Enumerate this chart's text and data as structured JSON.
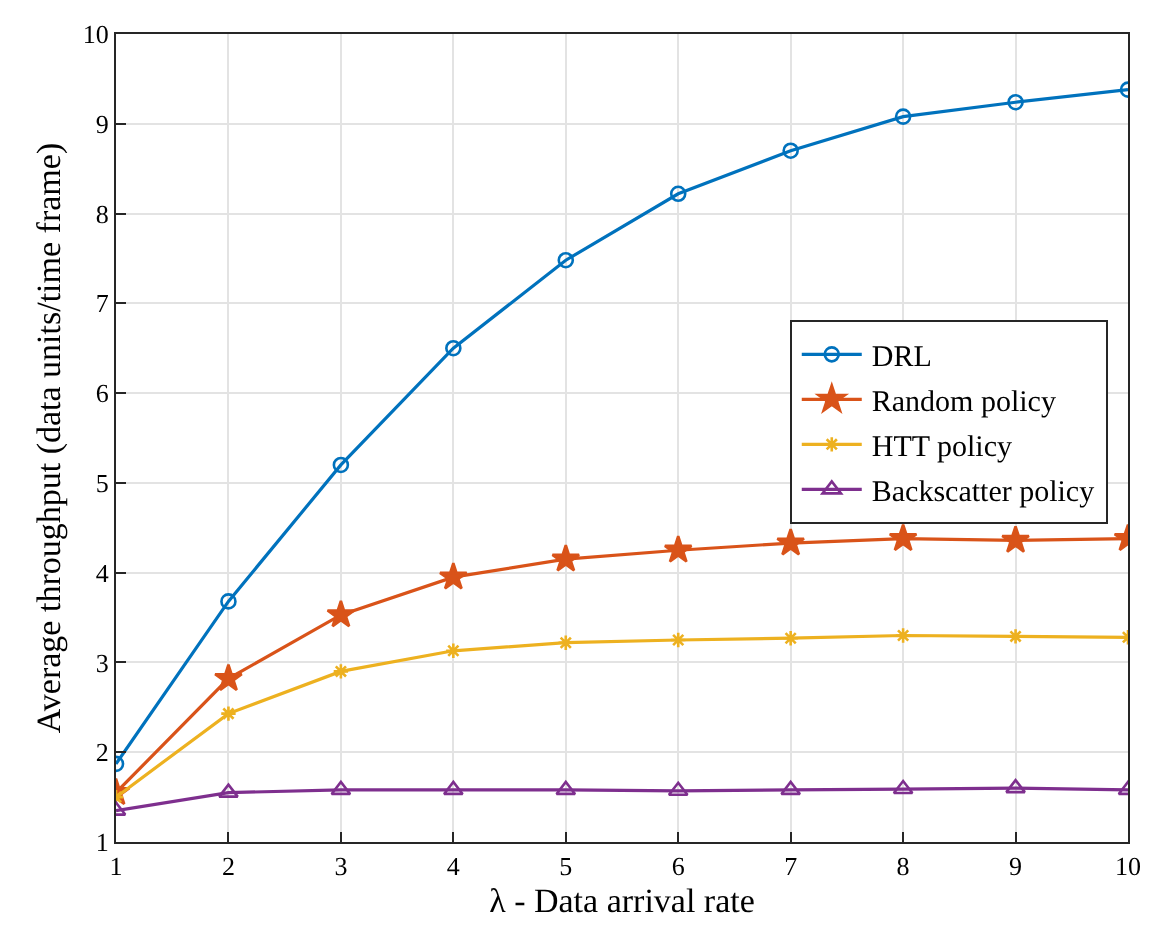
{
  "chart_data": {
    "type": "line",
    "xlabel": "λ - Data arrival rate",
    "ylabel": "Average throughput (data units/time frame)",
    "x": [
      1,
      2,
      3,
      4,
      5,
      6,
      7,
      8,
      9,
      10
    ],
    "xlim": [
      1,
      10
    ],
    "xticks": [
      1,
      2,
      3,
      4,
      5,
      6,
      7,
      8,
      9,
      10
    ],
    "ylim": [
      1,
      10
    ],
    "yticks": [
      1,
      2,
      3,
      4,
      5,
      6,
      7,
      8,
      9,
      10
    ],
    "grid": true,
    "legend": "right",
    "series": [
      {
        "name": "DRL",
        "color": "#0072bd",
        "marker": "circle",
        "values": [
          1.87,
          3.68,
          5.2,
          6.5,
          7.48,
          8.22,
          8.7,
          9.08,
          9.24,
          9.38
        ]
      },
      {
        "name": "Random policy",
        "color": "#d95319",
        "marker": "star",
        "values": [
          1.55,
          2.82,
          3.53,
          3.95,
          4.15,
          4.25,
          4.33,
          4.38,
          4.36,
          4.38
        ]
      },
      {
        "name": "HTT policy",
        "color": "#edb120",
        "marker": "cross",
        "values": [
          1.5,
          2.43,
          2.9,
          3.13,
          3.22,
          3.25,
          3.27,
          3.3,
          3.29,
          3.28
        ]
      },
      {
        "name": "Backscatter policy",
        "color": "#7e2f8e",
        "marker": "triangle",
        "values": [
          1.35,
          1.55,
          1.58,
          1.58,
          1.58,
          1.57,
          1.58,
          1.59,
          1.6,
          1.58
        ]
      }
    ]
  }
}
